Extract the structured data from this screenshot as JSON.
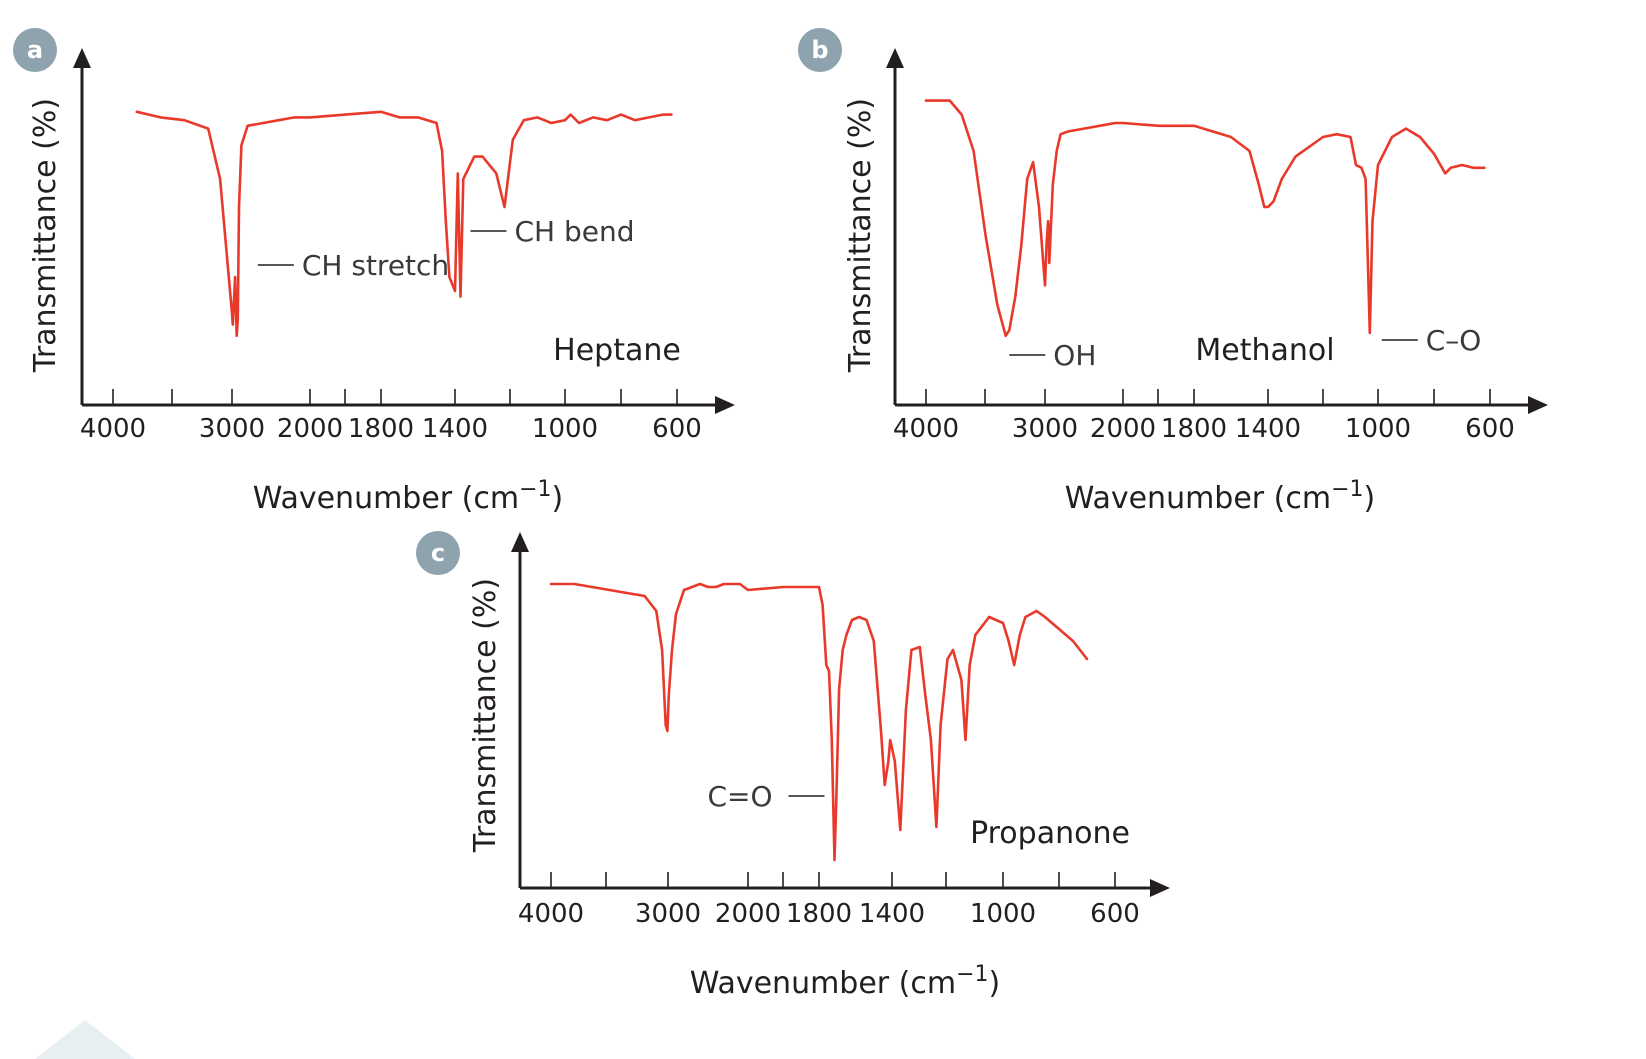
{
  "chart_data": [
    {
      "type": "line",
      "panel_label": "a",
      "compound": "Heptane",
      "xlabel": "Wavenumber (cm",
      "xlabel_sup": "−1",
      "xlabel_close": ")",
      "ylabel": "Transmittance (%)",
      "x_ticks": [
        "4000",
        "3000",
        "2000",
        "1800",
        "1400",
        "1000",
        "600"
      ],
      "annotations": [
        {
          "text": "CH stretch",
          "x": 2925
        },
        {
          "text": "CH bend",
          "x": 1380
        }
      ],
      "series": [
        {
          "points": [
            [
              3800,
              94
            ],
            [
              3600,
              92
            ],
            [
              3400,
              91
            ],
            [
              3200,
              88
            ],
            [
              3100,
              70
            ],
            [
              3000,
              22
            ],
            [
              2990,
              18
            ],
            [
              2960,
              35
            ],
            [
              2940,
              14
            ],
            [
              2925,
              20
            ],
            [
              2910,
              60
            ],
            [
              2880,
              82
            ],
            [
              2800,
              89
            ],
            [
              2600,
              90
            ],
            [
              2400,
              91
            ],
            [
              2200,
              92
            ],
            [
              2000,
              92
            ],
            [
              1900,
              93
            ],
            [
              1800,
              94
            ],
            [
              1700,
              92
            ],
            [
              1600,
              92
            ],
            [
              1500,
              90
            ],
            [
              1470,
              80
            ],
            [
              1450,
              55
            ],
            [
              1430,
              35
            ],
            [
              1400,
              30
            ],
            [
              1390,
              72
            ],
            [
              1380,
              28
            ],
            [
              1370,
              70
            ],
            [
              1330,
              78
            ],
            [
              1300,
              78
            ],
            [
              1250,
              72
            ],
            [
              1220,
              60
            ],
            [
              1190,
              84
            ],
            [
              1150,
              91
            ],
            [
              1100,
              92
            ],
            [
              1050,
              90
            ],
            [
              1000,
              91
            ],
            [
              980,
              93
            ],
            [
              950,
              90
            ],
            [
              900,
              92
            ],
            [
              850,
              91
            ],
            [
              800,
              93
            ],
            [
              750,
              91
            ],
            [
              700,
              92
            ],
            [
              650,
              93
            ],
            [
              620,
              93
            ]
          ]
        }
      ]
    },
    {
      "type": "line",
      "panel_label": "b",
      "compound": "Methanol",
      "xlabel": "Wavenumber (cm",
      "xlabel_sup": "−1",
      "xlabel_close": ")",
      "ylabel": "Transmittance (%)",
      "x_ticks": [
        "4000",
        "3000",
        "2000",
        "1800",
        "1400",
        "1000",
        "600"
      ],
      "annotations": [
        {
          "text": "OH",
          "x": 3300
        },
        {
          "text": "C–O",
          "x": 1030
        }
      ],
      "series": [
        {
          "points": [
            [
              4000,
              98
            ],
            [
              3800,
              98
            ],
            [
              3700,
              93
            ],
            [
              3600,
              80
            ],
            [
              3500,
              50
            ],
            [
              3400,
              25
            ],
            [
              3330,
              14
            ],
            [
              3300,
              16
            ],
            [
              3250,
              28
            ],
            [
              3200,
              46
            ],
            [
              3150,
              70
            ],
            [
              3100,
              76
            ],
            [
              3050,
              60
            ],
            [
              3000,
              32
            ],
            [
              2980,
              47
            ],
            [
              2960,
              55
            ],
            [
              2950,
              52
            ],
            [
              2945,
              40
            ],
            [
              2900,
              68
            ],
            [
              2850,
              80
            ],
            [
              2800,
              86
            ],
            [
              2700,
              87
            ],
            [
              2500,
              88
            ],
            [
              2300,
              89
            ],
            [
              2100,
              90
            ],
            [
              2000,
              90
            ],
            [
              1900,
              89
            ],
            [
              1800,
              89
            ],
            [
              1700,
              87
            ],
            [
              1600,
              85
            ],
            [
              1500,
              80
            ],
            [
              1450,
              68
            ],
            [
              1420,
              60
            ],
            [
              1400,
              60
            ],
            [
              1380,
              62
            ],
            [
              1350,
              70
            ],
            [
              1300,
              78
            ],
            [
              1200,
              85
            ],
            [
              1150,
              86
            ],
            [
              1100,
              85
            ],
            [
              1080,
              75
            ],
            [
              1060,
              74
            ],
            [
              1045,
              70
            ],
            [
              1030,
              15
            ],
            [
              1020,
              55
            ],
            [
              1000,
              75
            ],
            [
              950,
              85
            ],
            [
              900,
              88
            ],
            [
              850,
              85
            ],
            [
              800,
              79
            ],
            [
              760,
              72
            ],
            [
              740,
              74
            ],
            [
              700,
              75
            ],
            [
              660,
              74
            ],
            [
              620,
              74
            ]
          ]
        }
      ]
    },
    {
      "type": "line",
      "panel_label": "c",
      "compound": "Propanone",
      "xlabel": "Wavenumber (cm",
      "xlabel_sup": "−1",
      "xlabel_close": ")",
      "ylabel": "Transmittance (%)",
      "x_ticks": [
        "4000",
        "3000",
        "2000",
        "1800",
        "1400",
        "1000",
        "600"
      ],
      "annotations": [
        {
          "text": "C=O",
          "x": 1715
        }
      ],
      "series": [
        {
          "points": [
            [
              4000,
              97
            ],
            [
              3800,
              97
            ],
            [
              3500,
              95
            ],
            [
              3200,
              93
            ],
            [
              3100,
              88
            ],
            [
              3050,
              75
            ],
            [
              3020,
              50
            ],
            [
              3005,
              48
            ],
            [
              2990,
              60
            ],
            [
              2950,
              75
            ],
            [
              2900,
              87
            ],
            [
              2800,
              95
            ],
            [
              2700,
              96
            ],
            [
              2600,
              97
            ],
            [
              2500,
              96
            ],
            [
              2400,
              96
            ],
            [
              2300,
              97
            ],
            [
              2200,
              97
            ],
            [
              2100,
              97
            ],
            [
              2000,
              95
            ],
            [
              1900,
              96
            ],
            [
              1800,
              96
            ],
            [
              1780,
              90
            ],
            [
              1760,
              70
            ],
            [
              1745,
              68
            ],
            [
              1730,
              45
            ],
            [
              1715,
              5
            ],
            [
              1705,
              25
            ],
            [
              1690,
              62
            ],
            [
              1670,
              75
            ],
            [
              1650,
              80
            ],
            [
              1620,
              85
            ],
            [
              1580,
              86
            ],
            [
              1540,
              85
            ],
            [
              1500,
              78
            ],
            [
              1460,
              48
            ],
            [
              1440,
              30
            ],
            [
              1420,
              38
            ],
            [
              1410,
              45
            ],
            [
              1390,
              38
            ],
            [
              1370,
              15
            ],
            [
              1350,
              55
            ],
            [
              1330,
              75
            ],
            [
              1300,
              76
            ],
            [
              1280,
              60
            ],
            [
              1260,
              45
            ],
            [
              1240,
              16
            ],
            [
              1225,
              50
            ],
            [
              1200,
              72
            ],
            [
              1180,
              75
            ],
            [
              1150,
              65
            ],
            [
              1135,
              45
            ],
            [
              1120,
              70
            ],
            [
              1100,
              80
            ],
            [
              1050,
              86
            ],
            [
              1000,
              84
            ],
            [
              980,
              78
            ],
            [
              960,
              70
            ],
            [
              940,
              80
            ],
            [
              920,
              86
            ],
            [
              880,
              88
            ],
            [
              850,
              86
            ],
            [
              800,
              82
            ],
            [
              750,
              78
            ],
            [
              700,
              72
            ]
          ]
        }
      ]
    }
  ]
}
